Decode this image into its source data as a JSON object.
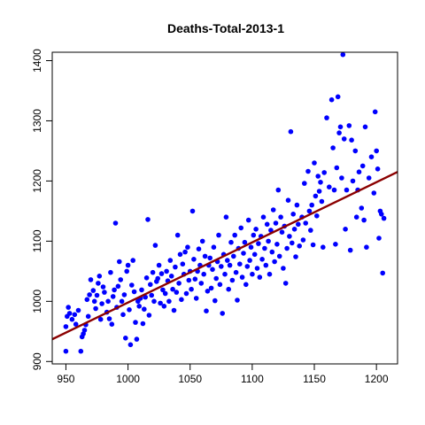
{
  "chart_data": {
    "type": "scatter",
    "title": "Deaths-Total-2013-1",
    "xlabel": "",
    "ylabel": "",
    "xlim": [
      939,
      1217
    ],
    "ylim": [
      896,
      1414
    ],
    "x_ticks": [
      950,
      1000,
      1050,
      1100,
      1150,
      1200
    ],
    "y_ticks": [
      900,
      1000,
      1100,
      1200,
      1300,
      1400
    ],
    "grid": false,
    "point_color": "#0000ff",
    "line_color": "#8b0000",
    "fit_line": {
      "x": [
        939,
        1217
      ],
      "y": [
        937,
        1215
      ]
    },
    "points": [
      [
        950,
        917
      ],
      [
        950,
        958
      ],
      [
        951,
        975
      ],
      [
        952,
        990
      ],
      [
        953,
        980
      ],
      [
        955,
        970
      ],
      [
        957,
        978
      ],
      [
        958,
        962
      ],
      [
        960,
        985
      ],
      [
        962,
        917
      ],
      [
        963,
        941
      ],
      [
        964,
        946
      ],
      [
        965,
        952
      ],
      [
        966,
        961
      ],
      [
        967,
        1003
      ],
      [
        968,
        975
      ],
      [
        969,
        1011
      ],
      [
        970,
        1036
      ],
      [
        972,
        1018
      ],
      [
        973,
        1000
      ],
      [
        974,
        988
      ],
      [
        975,
        1010
      ],
      [
        976,
        1030
      ],
      [
        977,
        1042
      ],
      [
        978,
        970
      ],
      [
        979,
        996
      ],
      [
        980,
        1024
      ],
      [
        981,
        1015
      ],
      [
        983,
        982
      ],
      [
        984,
        1000
      ],
      [
        985,
        971
      ],
      [
        986,
        1048
      ],
      [
        987,
        962
      ],
      [
        988,
        1008
      ],
      [
        989,
        1019
      ],
      [
        990,
        1130
      ],
      [
        991,
        990
      ],
      [
        992,
        1025
      ],
      [
        993,
        1066
      ],
      [
        994,
        1036
      ],
      [
        995,
        1000
      ],
      [
        996,
        978
      ],
      [
        997,
        1011
      ],
      [
        998,
        939
      ],
      [
        999,
        1050
      ],
      [
        1000,
        1060
      ],
      [
        1001,
        986
      ],
      [
        1002,
        928
      ],
      [
        1003,
        1027
      ],
      [
        1004,
        1068
      ],
      [
        1005,
        1016
      ],
      [
        1006,
        965
      ],
      [
        1007,
        937
      ],
      [
        1008,
        1000
      ],
      [
        1009,
        992
      ],
      [
        1010,
        1005
      ],
      [
        1011,
        1019
      ],
      [
        1012,
        963
      ],
      [
        1013,
        987
      ],
      [
        1014,
        1007
      ],
      [
        1015,
        1039
      ],
      [
        1016,
        1136
      ],
      [
        1017,
        977
      ],
      [
        1018,
        1028
      ],
      [
        1019,
        1010
      ],
      [
        1020,
        1048
      ],
      [
        1021,
        1000
      ],
      [
        1022,
        1093
      ],
      [
        1023,
        1033
      ],
      [
        1024,
        1038
      ],
      [
        1025,
        1060
      ],
      [
        1026,
        997
      ],
      [
        1027,
        1046
      ],
      [
        1028,
        1019
      ],
      [
        1029,
        992
      ],
      [
        1030,
        1013
      ],
      [
        1031,
        1050
      ],
      [
        1032,
        1034
      ],
      [
        1033,
        1000
      ],
      [
        1034,
        1068
      ],
      [
        1035,
        1042
      ],
      [
        1036,
        1020
      ],
      [
        1037,
        985
      ],
      [
        1038,
        1057
      ],
      [
        1039,
        1015
      ],
      [
        1040,
        1110
      ],
      [
        1041,
        1030
      ],
      [
        1042,
        1078
      ],
      [
        1043,
        1003
      ],
      [
        1044,
        1062
      ],
      [
        1045,
        1045
      ],
      [
        1046,
        1082
      ],
      [
        1047,
        1013
      ],
      [
        1048,
        1090
      ],
      [
        1049,
        1035
      ],
      [
        1050,
        1050
      ],
      [
        1051,
        1020
      ],
      [
        1052,
        1150
      ],
      [
        1053,
        1070
      ],
      [
        1054,
        1037
      ],
      [
        1055,
        1005
      ],
      [
        1056,
        1050
      ],
      [
        1057,
        1087
      ],
      [
        1058,
        1060
      ],
      [
        1059,
        1030
      ],
      [
        1060,
        1100
      ],
      [
        1061,
        1045
      ],
      [
        1062,
        1075
      ],
      [
        1063,
        984
      ],
      [
        1064,
        1017
      ],
      [
        1065,
        1060
      ],
      [
        1066,
        1072
      ],
      [
        1067,
        1022
      ],
      [
        1068,
        1053
      ],
      [
        1069,
        1090
      ],
      [
        1070,
        1001
      ],
      [
        1071,
        1038
      ],
      [
        1072,
        1066
      ],
      [
        1073,
        1110
      ],
      [
        1074,
        1028
      ],
      [
        1075,
        1058
      ],
      [
        1076,
        980
      ],
      [
        1077,
        1078
      ],
      [
        1078,
        1045
      ],
      [
        1079,
        1140
      ],
      [
        1080,
        1068
      ],
      [
        1081,
        1020
      ],
      [
        1082,
        1060
      ],
      [
        1083,
        1098
      ],
      [
        1084,
        1035
      ],
      [
        1085,
        1075
      ],
      [
        1086,
        1110
      ],
      [
        1087,
        1048
      ],
      [
        1088,
        1002
      ],
      [
        1089,
        1088
      ],
      [
        1090,
        1062
      ],
      [
        1091,
        1122
      ],
      [
        1092,
        1040
      ],
      [
        1093,
        1080
      ],
      [
        1094,
        1098
      ],
      [
        1095,
        1028
      ],
      [
        1096,
        1058
      ],
      [
        1097,
        1135
      ],
      [
        1098,
        1068
      ],
      [
        1099,
        1090
      ],
      [
        1100,
        1045
      ],
      [
        1101,
        1110
      ],
      [
        1102,
        1078
      ],
      [
        1103,
        1120
      ],
      [
        1104,
        1055
      ],
      [
        1105,
        1096
      ],
      [
        1106,
        1040
      ],
      [
        1107,
        1108
      ],
      [
        1108,
        1070
      ],
      [
        1109,
        1140
      ],
      [
        1110,
        1088
      ],
      [
        1111,
        1060
      ],
      [
        1112,
        1128
      ],
      [
        1113,
        1100
      ],
      [
        1114,
        1045
      ],
      [
        1115,
        1118
      ],
      [
        1116,
        1082
      ],
      [
        1117,
        1152
      ],
      [
        1118,
        1066
      ],
      [
        1119,
        1130
      ],
      [
        1120,
        1095
      ],
      [
        1121,
        1185
      ],
      [
        1122,
        1075
      ],
      [
        1123,
        1140
      ],
      [
        1124,
        1115
      ],
      [
        1125,
        1055
      ],
      [
        1126,
        1125
      ],
      [
        1127,
        1030
      ],
      [
        1128,
        1088
      ],
      [
        1129,
        1168
      ],
      [
        1130,
        1108
      ],
      [
        1131,
        1282
      ],
      [
        1132,
        1097
      ],
      [
        1133,
        1145
      ],
      [
        1134,
        1120
      ],
      [
        1135,
        1074
      ],
      [
        1136,
        1160
      ],
      [
        1137,
        1128
      ],
      [
        1138,
        1092
      ],
      [
        1140,
        1140
      ],
      [
        1141,
        1102
      ],
      [
        1142,
        1196
      ],
      [
        1143,
        1130
      ],
      [
        1145,
        1216
      ],
      [
        1146,
        1150
      ],
      [
        1147,
        1118
      ],
      [
        1148,
        1160
      ],
      [
        1149,
        1094
      ],
      [
        1150,
        1230
      ],
      [
        1151,
        1175
      ],
      [
        1152,
        1142
      ],
      [
        1153,
        1208
      ],
      [
        1154,
        1183
      ],
      [
        1155,
        1198
      ],
      [
        1156,
        1166
      ],
      [
        1157,
        1090
      ],
      [
        1158,
        1214
      ],
      [
        1160,
        1305
      ],
      [
        1162,
        1190
      ],
      [
        1164,
        1335
      ],
      [
        1165,
        1255
      ],
      [
        1166,
        1185
      ],
      [
        1167,
        1095
      ],
      [
        1168,
        1222
      ],
      [
        1169,
        1340
      ],
      [
        1170,
        1280
      ],
      [
        1171,
        1290
      ],
      [
        1172,
        1205
      ],
      [
        1173,
        1410
      ],
      [
        1174,
        1270
      ],
      [
        1175,
        1120
      ],
      [
        1176,
        1185
      ],
      [
        1178,
        1292
      ],
      [
        1179,
        1085
      ],
      [
        1180,
        1268
      ],
      [
        1181,
        1200
      ],
      [
        1183,
        1250
      ],
      [
        1184,
        1140
      ],
      [
        1185,
        1185
      ],
      [
        1186,
        1215
      ],
      [
        1188,
        1155
      ],
      [
        1189,
        1225
      ],
      [
        1190,
        1135
      ],
      [
        1191,
        1290
      ],
      [
        1192,
        1090
      ],
      [
        1194,
        1205
      ],
      [
        1196,
        1240
      ],
      [
        1198,
        1180
      ],
      [
        1199,
        1315
      ],
      [
        1200,
        1250
      ],
      [
        1201,
        1220
      ],
      [
        1202,
        1105
      ],
      [
        1203,
        1150
      ],
      [
        1204,
        1145
      ],
      [
        1205,
        1047
      ],
      [
        1206,
        1138
      ]
    ]
  }
}
